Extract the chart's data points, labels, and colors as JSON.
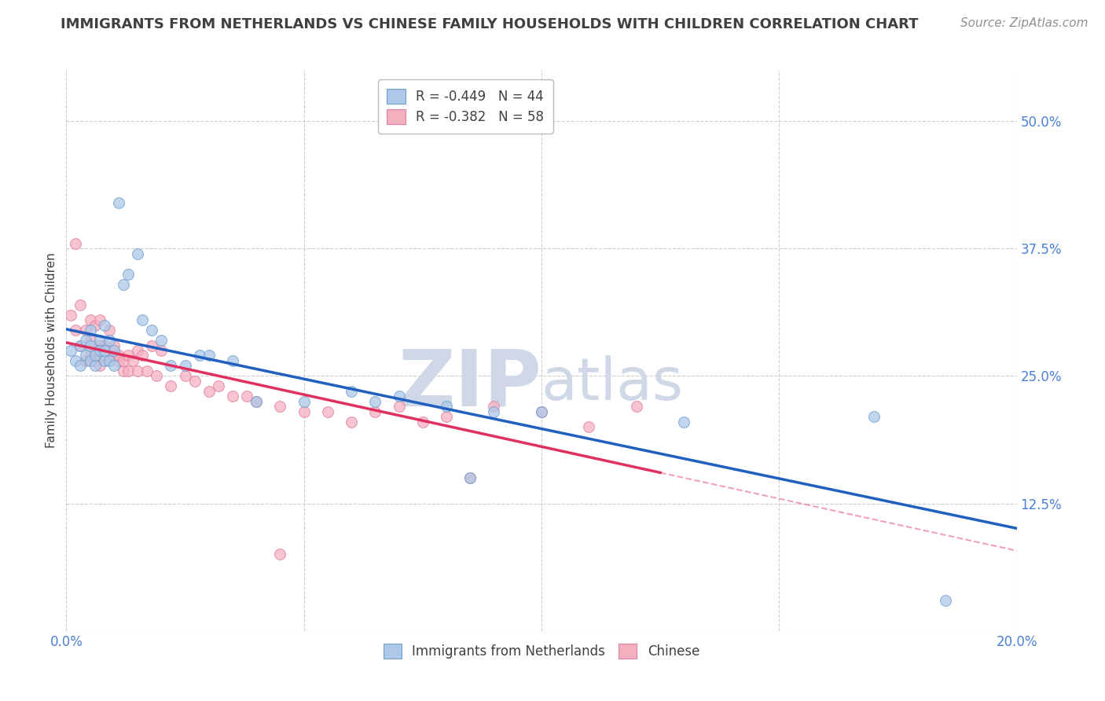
{
  "title": "IMMIGRANTS FROM NETHERLANDS VS CHINESE FAMILY HOUSEHOLDS WITH CHILDREN CORRELATION CHART",
  "source": "Source: ZipAtlas.com",
  "ylabel": "Family Households with Children",
  "xlim": [
    0.0,
    0.2
  ],
  "ylim": [
    0.0,
    0.55
  ],
  "xtick_positions": [
    0.0,
    0.05,
    0.1,
    0.15,
    0.2
  ],
  "xticklabels": [
    "0.0%",
    "",
    "",
    "",
    "20.0%"
  ],
  "ytick_positions": [
    0.0,
    0.125,
    0.25,
    0.375,
    0.5
  ],
  "yticklabels": [
    "",
    "12.5%",
    "25.0%",
    "37.5%",
    "50.0%"
  ],
  "legend1_label": "R = -0.449   N = 44",
  "legend2_label": "R = -0.382   N = 58",
  "legend1_color": "#adc8e8",
  "legend2_color": "#f5b0c0",
  "line1_color": "#2060c0",
  "line2_color": "#e03060",
  "watermark_color": "#d0d8e8",
  "background_color": "#ffffff",
  "grid_color": "#c8c8c8",
  "title_color": "#404040",
  "source_color": "#909090",
  "axis_label_color": "#404040",
  "tick_color": "#4a80d4",
  "scatter1_color": "#adc8e8",
  "scatter2_color": "#f5b0c0",
  "scatter1_edge": "#70a0d0",
  "scatter2_edge": "#e080a0",
  "blue_x": [
    0.001,
    0.002,
    0.003,
    0.003,
    0.004,
    0.004,
    0.005,
    0.005,
    0.005,
    0.006,
    0.006,
    0.007,
    0.007,
    0.008,
    0.008,
    0.008,
    0.009,
    0.009,
    0.01,
    0.01,
    0.011,
    0.012,
    0.013,
    0.015,
    0.016,
    0.018,
    0.02,
    0.022,
    0.025,
    0.028,
    0.03,
    0.035,
    0.04,
    0.05,
    0.06,
    0.065,
    0.07,
    0.08,
    0.085,
    0.09,
    0.1,
    0.13,
    0.17,
    0.185
  ],
  "blue_y": [
    0.275,
    0.265,
    0.26,
    0.28,
    0.27,
    0.285,
    0.265,
    0.28,
    0.295,
    0.26,
    0.27,
    0.285,
    0.275,
    0.265,
    0.275,
    0.3,
    0.285,
    0.265,
    0.26,
    0.275,
    0.42,
    0.34,
    0.35,
    0.37,
    0.305,
    0.295,
    0.285,
    0.26,
    0.26,
    0.27,
    0.27,
    0.265,
    0.225,
    0.225,
    0.235,
    0.225,
    0.23,
    0.22,
    0.15,
    0.215,
    0.215,
    0.205,
    0.21,
    0.03
  ],
  "pink_x": [
    0.001,
    0.002,
    0.002,
    0.003,
    0.003,
    0.004,
    0.004,
    0.005,
    0.005,
    0.005,
    0.006,
    0.006,
    0.006,
    0.007,
    0.007,
    0.007,
    0.008,
    0.008,
    0.009,
    0.009,
    0.01,
    0.01,
    0.011,
    0.011,
    0.012,
    0.012,
    0.013,
    0.013,
    0.014,
    0.015,
    0.015,
    0.016,
    0.017,
    0.018,
    0.019,
    0.02,
    0.022,
    0.025,
    0.027,
    0.03,
    0.032,
    0.035,
    0.038,
    0.04,
    0.045,
    0.05,
    0.055,
    0.06,
    0.065,
    0.07,
    0.075,
    0.08,
    0.09,
    0.1,
    0.11,
    0.12,
    0.085,
    0.045
  ],
  "pink_y": [
    0.31,
    0.295,
    0.38,
    0.28,
    0.32,
    0.265,
    0.295,
    0.27,
    0.285,
    0.305,
    0.265,
    0.275,
    0.3,
    0.26,
    0.28,
    0.305,
    0.27,
    0.28,
    0.265,
    0.295,
    0.27,
    0.28,
    0.265,
    0.27,
    0.255,
    0.265,
    0.27,
    0.255,
    0.265,
    0.275,
    0.255,
    0.27,
    0.255,
    0.28,
    0.25,
    0.275,
    0.24,
    0.25,
    0.245,
    0.235,
    0.24,
    0.23,
    0.23,
    0.225,
    0.22,
    0.215,
    0.215,
    0.205,
    0.215,
    0.22,
    0.205,
    0.21,
    0.22,
    0.215,
    0.2,
    0.22,
    0.15,
    0.075
  ],
  "legend_bottom_label1": "Immigrants from Netherlands",
  "legend_bottom_label2": "Chinese"
}
